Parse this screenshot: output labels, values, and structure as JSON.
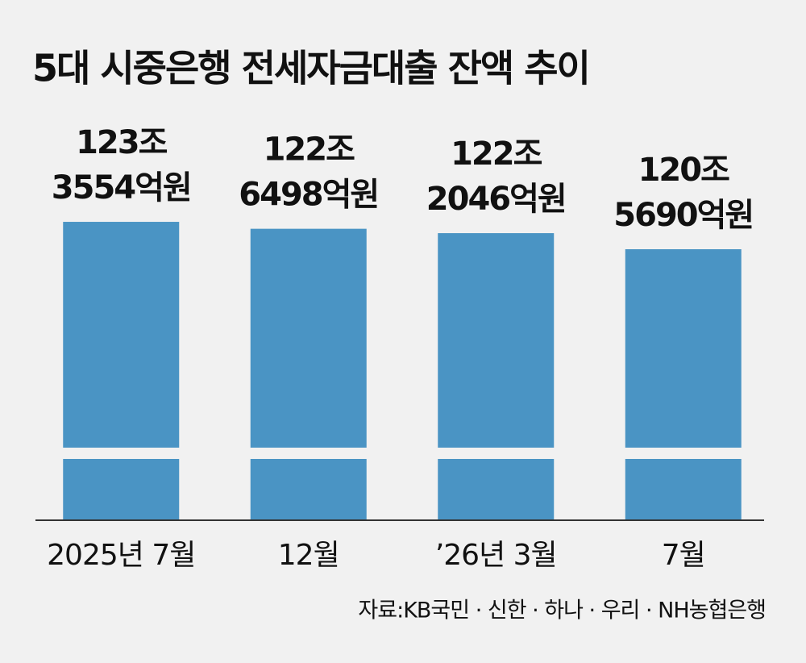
{
  "chart_data": {
    "type": "bar",
    "title": "5대 시중은행 전세자금대출 잔액 추이",
    "categories": [
      "2025년 7월",
      "12월",
      "’26년 3월",
      "7월"
    ],
    "values": [
      123.3554,
      122.6498,
      122.2046,
      120.569
    ],
    "value_labels": [
      [
        "123조",
        "3554억원"
      ],
      [
        "122조",
        "6498억원"
      ],
      [
        "122조",
        "2046억원"
      ],
      [
        "120조",
        "5690억원"
      ]
    ],
    "color": "#4a94c4",
    "ylim": [
      93,
      125
    ],
    "axis_break": true,
    "source": "자료:KB국민 · 신한 · 하나 · 우리 · NH농협은행"
  }
}
